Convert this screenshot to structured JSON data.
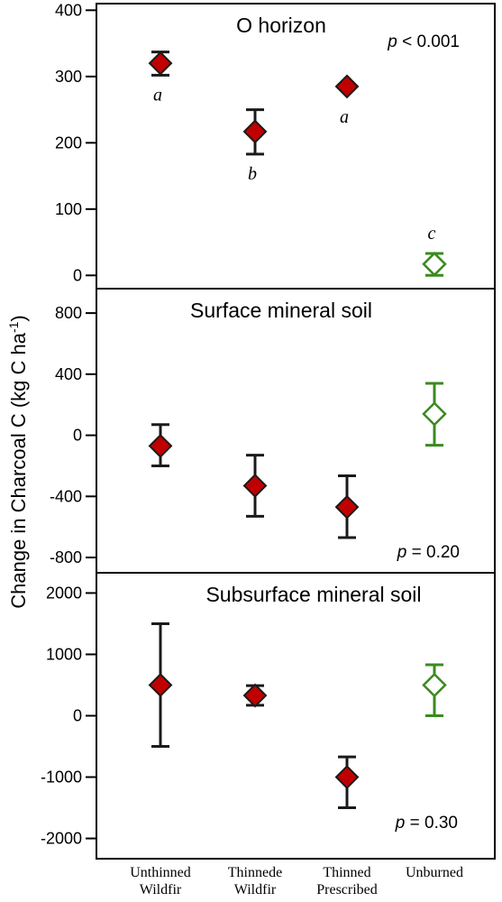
{
  "chart_data": {
    "type": "scatter",
    "ylabel": "Change in Charcoal C (kg C ha",
    "ylabel_sup": "-1",
    "ylabel_close": ")",
    "categories": [
      [
        "Unthinned",
        "Wildfir"
      ],
      [
        "Thinnede",
        "Wildfir"
      ],
      [
        "Thinned",
        "Prescribed"
      ],
      [
        "Unburned",
        ""
      ]
    ],
    "styles": [
      "filled",
      "filled",
      "filled",
      "open"
    ],
    "colors": {
      "filled_fill": "#c00000",
      "filled_stroke": "#1a1a1a",
      "open_stroke": "#3a8a1f",
      "frame": "#000000"
    },
    "panels": [
      {
        "title": "O horizon",
        "p_label": "p",
        "p_text": " < 0.001",
        "ylim": [
          -20,
          410
        ],
        "yticks": [
          0,
          100,
          200,
          300,
          400
        ],
        "points": [
          {
            "y": 320,
            "lo": 302,
            "hi": 337,
            "letter": "a"
          },
          {
            "y": 217,
            "lo": 183,
            "hi": 250,
            "letter": "b"
          },
          {
            "y": 285,
            "lo": 285,
            "hi": 285,
            "letter": "a"
          },
          {
            "y": 17,
            "lo": 0,
            "hi": 33,
            "letter": "c"
          }
        ]
      },
      {
        "title": "Surface mineral soil",
        "p_label": "p",
        "p_text": " = 0.20",
        "ylim": [
          -900,
          960
        ],
        "yticks": [
          -800,
          -400,
          0,
          400,
          800
        ],
        "points": [
          {
            "y": -70,
            "lo": -200,
            "hi": 70
          },
          {
            "y": -330,
            "lo": -530,
            "hi": -130
          },
          {
            "y": -470,
            "lo": -670,
            "hi": -265
          },
          {
            "y": 140,
            "lo": -65,
            "hi": 340
          }
        ]
      },
      {
        "title": "Subsurface mineral soil",
        "p_label": "p",
        "p_text": " = 0.30",
        "ylim": [
          -2330,
          2330
        ],
        "yticks": [
          -2000,
          -1000,
          0,
          1000,
          2000
        ],
        "points": [
          {
            "y": 500,
            "lo": -500,
            "hi": 1500
          },
          {
            "y": 330,
            "lo": 170,
            "hi": 490
          },
          {
            "y": -1000,
            "lo": -1500,
            "hi": -670
          },
          {
            "y": 500,
            "lo": 0,
            "hi": 830
          }
        ]
      }
    ]
  }
}
